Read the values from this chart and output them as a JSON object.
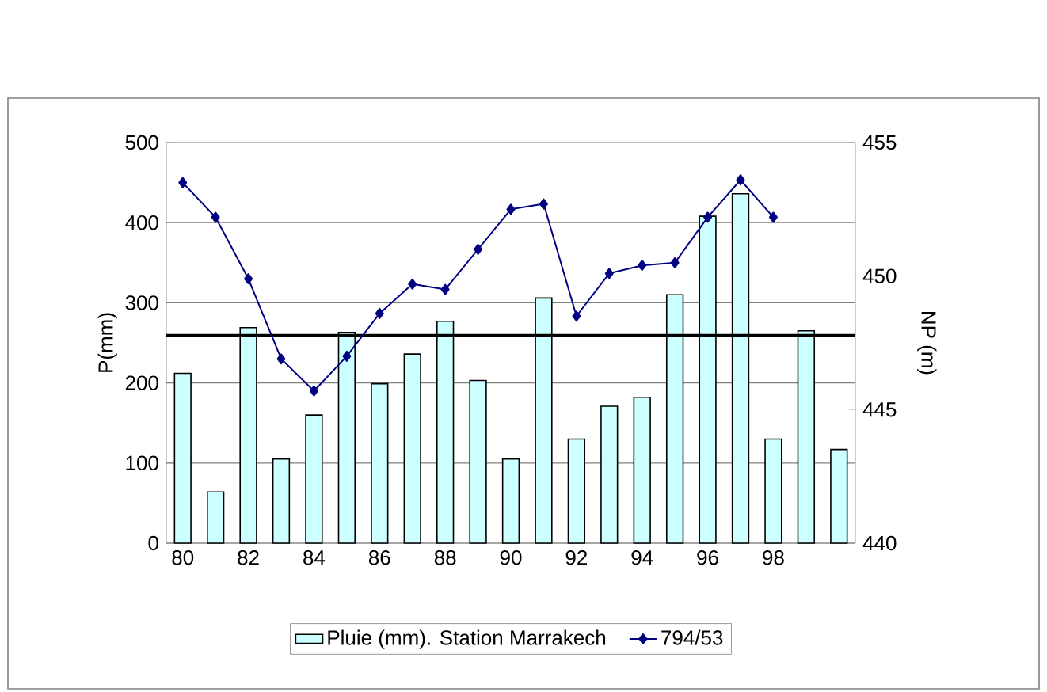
{
  "chart_data": {
    "type": "bar",
    "categories": [
      "80",
      null,
      "82",
      null,
      "84",
      null,
      "86",
      null,
      "88",
      null,
      "90",
      null,
      "92",
      null,
      "94",
      null,
      "96",
      null,
      "98",
      null,
      null
    ],
    "series": [
      {
        "name": "Pluie (mm). Station Marrakech",
        "color": "#ccffff",
        "values": [
          212,
          64,
          269,
          105,
          160,
          263,
          199,
          236,
          277,
          203,
          105,
          306,
          130,
          171,
          182,
          310,
          408,
          436,
          130,
          265,
          117
        ]
      },
      {
        "name": "794/53",
        "type": "line",
        "axis": "y2",
        "color": "#000080",
        "marker": "diamond",
        "values": [
          453.5,
          452.2,
          449.9,
          446.9,
          445.7,
          447.0,
          448.6,
          449.7,
          449.5,
          451.0,
          452.5,
          452.7,
          448.5,
          450.1,
          450.4,
          450.5,
          452.2,
          453.6,
          452.2,
          null,
          null
        ]
      }
    ],
    "ylabel": "P(mm)",
    "y2label": "NP (m)",
    "ylim": [
      0,
      500
    ],
    "yticks": [
      0,
      100,
      200,
      300,
      400,
      500
    ],
    "y2lim": [
      440,
      455
    ],
    "y2ticks": [
      440,
      445,
      450,
      455
    ],
    "grid": "y",
    "legend": "bottom",
    "ref_lines": [
      {
        "axis": "y",
        "value": 259,
        "color": "#000000"
      }
    ]
  }
}
